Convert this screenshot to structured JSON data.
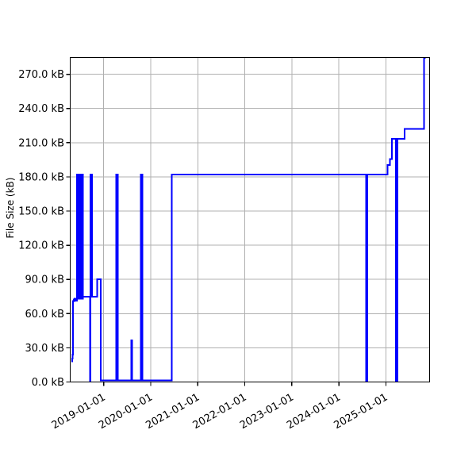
{
  "figure": {
    "background": "#ffffff",
    "accent_color": "#0000ff"
  },
  "chart_data": {
    "type": "line",
    "subtype": "step-post",
    "title": "",
    "xlabel": "",
    "ylabel": "File Size (kB)",
    "legend": "none",
    "grid": true,
    "grid_color": "#b0b0b0",
    "line_color": "#0000ff",
    "line_width": 2,
    "spine_color": "#000000",
    "x_range_years": [
      2018.288,
      2025.929
    ],
    "y_range_kb": [
      0,
      284.7
    ],
    "x_ticks": [
      {
        "year": 2019,
        "label": "2019-01-01"
      },
      {
        "year": 2020,
        "label": "2020-01-01"
      },
      {
        "year": 2021,
        "label": "2021-01-01"
      },
      {
        "year": 2022,
        "label": "2022-01-01"
      },
      {
        "year": 2023,
        "label": "2023-01-01"
      },
      {
        "year": 2024,
        "label": "2024-01-01"
      },
      {
        "year": 2025,
        "label": "2025-01-01"
      }
    ],
    "y_ticks": [
      {
        "kb": 0,
        "label": "0.0 kB"
      },
      {
        "kb": 30,
        "label": "30.0 kB"
      },
      {
        "kb": 60,
        "label": "60.0 kB"
      },
      {
        "kb": 90,
        "label": "90.0 kB"
      },
      {
        "kb": 120,
        "label": "120.0 kB"
      },
      {
        "kb": 150,
        "label": "150.0 kB"
      },
      {
        "kb": 180,
        "label": "180.0 kB"
      },
      {
        "kb": 210,
        "label": "210.0 kB"
      },
      {
        "kb": 240,
        "label": "240.0 kB"
      },
      {
        "kb": 270,
        "label": "270.0 kB"
      }
    ],
    "points_year_kb": [
      [
        2018.315,
        18
      ],
      [
        2018.327,
        20.5
      ],
      [
        2018.338,
        24
      ],
      [
        2018.348,
        71
      ],
      [
        2018.36,
        72.5
      ],
      [
        2018.372,
        71
      ],
      [
        2018.384,
        73
      ],
      [
        2018.396,
        71.5
      ],
      [
        2018.408,
        72.5
      ],
      [
        2018.418,
        71.5
      ],
      [
        2018.428,
        182
      ],
      [
        2018.437,
        73
      ],
      [
        2018.446,
        182
      ],
      [
        2018.455,
        73
      ],
      [
        2018.464,
        182
      ],
      [
        2018.473,
        73
      ],
      [
        2018.482,
        182
      ],
      [
        2018.491,
        73
      ],
      [
        2018.5,
        182
      ],
      [
        2018.509,
        73
      ],
      [
        2018.518,
        182
      ],
      [
        2018.527,
        73
      ],
      [
        2018.536,
        182
      ],
      [
        2018.545,
        73
      ],
      [
        2018.554,
        182
      ],
      [
        2018.562,
        75
      ],
      [
        2018.71,
        0.5
      ],
      [
        2018.722,
        182
      ],
      [
        2018.748,
        75
      ],
      [
        2018.858,
        90
      ],
      [
        2018.938,
        1.5
      ],
      [
        2019.267,
        182
      ],
      [
        2019.3,
        1.5
      ],
      [
        2019.585,
        36.5
      ],
      [
        2019.607,
        1.5
      ],
      [
        2019.789,
        182
      ],
      [
        2019.82,
        1.5
      ],
      [
        2020.447,
        182
      ],
      [
        2024.581,
        0.5
      ],
      [
        2024.603,
        182
      ],
      [
        2025.031,
        190.5
      ],
      [
        2025.082,
        195.5
      ],
      [
        2025.13,
        213.5
      ],
      [
        2025.211,
        0.5
      ],
      [
        2025.245,
        213.5
      ],
      [
        2025.397,
        222
      ],
      [
        2025.81,
        284.5
      ]
    ],
    "x_end_year": 2025.845
  }
}
